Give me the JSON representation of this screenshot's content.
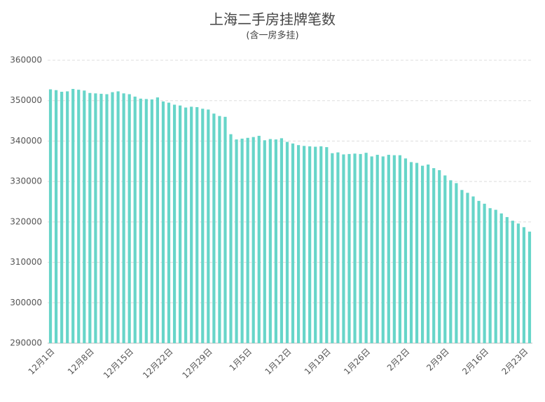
{
  "chart_data": {
    "type": "bar",
    "title": "上海二手房挂牌笔数",
    "subtitle": "(含一房多挂)",
    "categories": [
      "12月1日",
      null,
      null,
      null,
      null,
      null,
      null,
      "12月8日",
      null,
      null,
      null,
      null,
      null,
      null,
      "12月15日",
      null,
      null,
      null,
      null,
      null,
      null,
      "12月22日",
      null,
      null,
      null,
      null,
      null,
      null,
      "12月29日",
      null,
      null,
      null,
      null,
      null,
      null,
      "1月5日",
      null,
      null,
      null,
      null,
      null,
      null,
      "1月12日",
      null,
      null,
      null,
      null,
      null,
      null,
      "1月19日",
      null,
      null,
      null,
      null,
      null,
      null,
      "1月26日",
      null,
      null,
      null,
      null,
      null,
      null,
      "2月2日",
      null,
      null,
      null,
      null,
      null,
      null,
      "2月9日",
      null,
      null,
      null,
      null,
      null,
      null,
      "2月16日",
      null,
      null,
      null,
      null,
      null,
      null,
      "2月23日",
      null
    ],
    "values": [
      352800,
      352600,
      352200,
      352300,
      352900,
      352700,
      352500,
      351900,
      351800,
      351700,
      351600,
      352100,
      352300,
      351800,
      351600,
      351000,
      350500,
      350400,
      350300,
      350800,
      349800,
      349500,
      349000,
      348800,
      348300,
      348500,
      348400,
      348000,
      347800,
      346800,
      346200,
      346000,
      341700,
      340400,
      340600,
      340800,
      341000,
      341300,
      340200,
      340500,
      340400,
      340700,
      339800,
      339400,
      339000,
      338800,
      338700,
      338600,
      338700,
      338500,
      337000,
      337200,
      336700,
      336800,
      336900,
      336800,
      337100,
      336200,
      336600,
      336200,
      336600,
      336500,
      336500,
      335700,
      334800,
      334600,
      333900,
      334200,
      333300,
      332800,
      331500,
      330300,
      329600,
      327900,
      327200,
      326300,
      325200,
      324500,
      323400,
      323000,
      322100,
      321200,
      320300,
      319600,
      318700,
      317600
    ],
    "color": "#67d5c9",
    "ylim": [
      290000,
      360000
    ],
    "yticks": [
      290000,
      300000,
      310000,
      320000,
      330000,
      340000,
      350000,
      360000
    ],
    "grid": true
  }
}
